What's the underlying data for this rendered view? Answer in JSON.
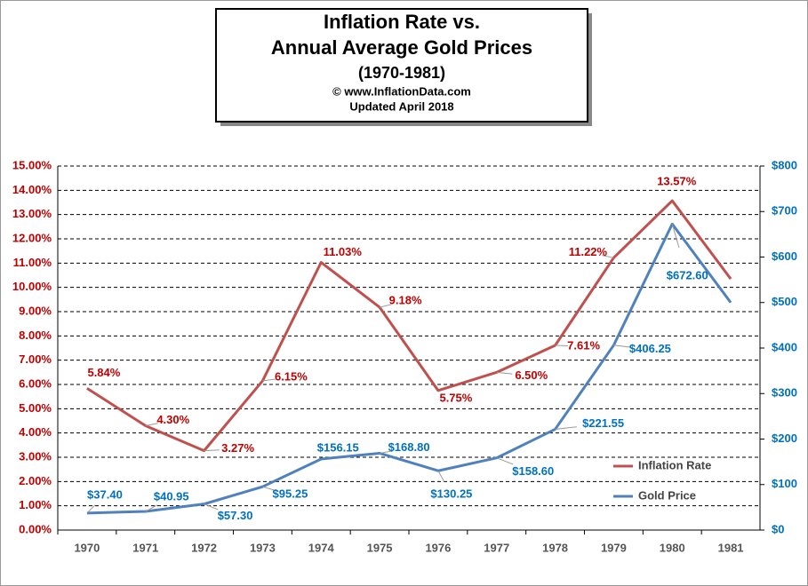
{
  "chart_data": {
    "type": "line",
    "title": [
      "Inflation Rate vs.",
      "Annual Average Gold Prices"
    ],
    "subtitle": "(1970-1981)",
    "source": "© www.InflationData.com",
    "updated": "Updated April 2018",
    "categories": [
      "1970",
      "1971",
      "1972",
      "1973",
      "1974",
      "1975",
      "1976",
      "1977",
      "1978",
      "1979",
      "1980",
      "1981"
    ],
    "series": [
      {
        "name": "Inflation Rate",
        "color": "#c0504d",
        "label_color": "#c00000",
        "axis": "y",
        "values": [
          5.84,
          4.3,
          3.27,
          6.15,
          11.03,
          9.18,
          5.75,
          6.5,
          7.61,
          11.22,
          13.57,
          10.35
        ],
        "value_labels": [
          "5.84%",
          "4.30%",
          "3.27%",
          "6.15%",
          "11.03%",
          "9.18%",
          "5.75%",
          "6.50%",
          "7.61%",
          "11.22%",
          "13.57%",
          null
        ]
      },
      {
        "name": "Gold Price",
        "color": "#4f81bd",
        "label_color": "#0070c0",
        "axis": "y2",
        "values": [
          37.4,
          40.95,
          57.3,
          95.25,
          156.15,
          168.8,
          130.25,
          158.6,
          221.55,
          406.25,
          672.6,
          500
        ],
        "value_labels": [
          "$37.40",
          "$40.95",
          "$57.30",
          "$95.25",
          "$156.15",
          "$168.80",
          "$130.25",
          "$158.60",
          "$221.55",
          "$406.25",
          "$672.60",
          null
        ]
      }
    ],
    "ylim": [
      0,
      15
    ],
    "yticks": [
      {
        "value": 0,
        "label": "0.00%"
      },
      {
        "value": 1,
        "label": "1.00%"
      },
      {
        "value": 2,
        "label": "2.00%"
      },
      {
        "value": 3,
        "label": "3.00%"
      },
      {
        "value": 4,
        "label": "4.00%"
      },
      {
        "value": 5,
        "label": "5.00%"
      },
      {
        "value": 6,
        "label": "6.00%"
      },
      {
        "value": 7,
        "label": "7.00%"
      },
      {
        "value": 8,
        "label": "8.00%"
      },
      {
        "value": 9,
        "label": "9.00%"
      },
      {
        "value": 10,
        "label": "10.00%"
      },
      {
        "value": 11,
        "label": "11.00%"
      },
      {
        "value": 12,
        "label": "12.00%"
      },
      {
        "value": 13,
        "label": "13.00%"
      },
      {
        "value": 14,
        "label": "14.00%"
      },
      {
        "value": 15,
        "label": "15.00%"
      }
    ],
    "y2lim": [
      0,
      800
    ],
    "y2ticks": [
      {
        "value": 0,
        "label": "$0"
      },
      {
        "value": 100,
        "label": "$100"
      },
      {
        "value": 200,
        "label": "$200"
      },
      {
        "value": 300,
        "label": "$300"
      },
      {
        "value": 400,
        "label": "$400"
      },
      {
        "value": 500,
        "label": "$500"
      },
      {
        "value": 600,
        "label": "$600"
      },
      {
        "value": 700,
        "label": "$700"
      },
      {
        "value": 800,
        "label": "$800"
      }
    ],
    "grid": true,
    "legend": "lower right"
  }
}
